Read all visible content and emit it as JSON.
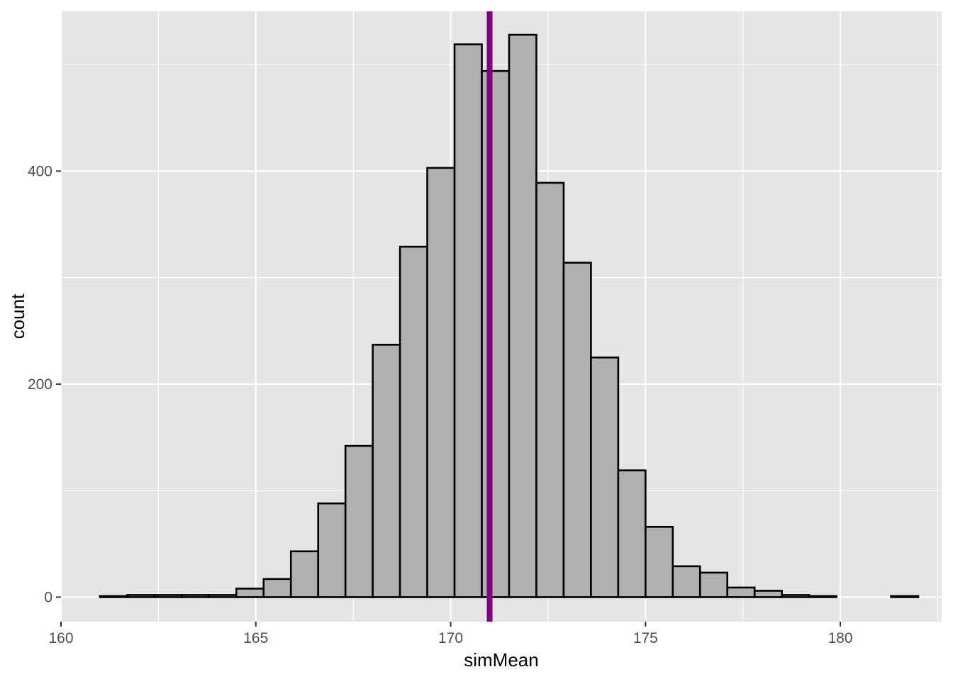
{
  "chart_data": {
    "type": "bar",
    "subtype": "histogram",
    "xlabel": "simMean",
    "ylabel": "count",
    "xlim": [
      160,
      182.6
    ],
    "ylim": [
      -23,
      550
    ],
    "x_ticks": [
      160,
      165,
      170,
      175,
      180
    ],
    "y_ticks": [
      0,
      200,
      400
    ],
    "x_tick_labels": [
      "160",
      "165",
      "170",
      "175",
      "180"
    ],
    "y_tick_labels": [
      "0",
      "200",
      "400"
    ],
    "grid": true,
    "bin_width": 0.7,
    "bins": [
      {
        "x0": 161.0,
        "x1": 161.7,
        "count": 1
      },
      {
        "x0": 161.7,
        "x1": 162.4,
        "count": 2
      },
      {
        "x0": 162.4,
        "x1": 163.1,
        "count": 2
      },
      {
        "x0": 163.1,
        "x1": 163.8,
        "count": 2
      },
      {
        "x0": 163.8,
        "x1": 164.5,
        "count": 2
      },
      {
        "x0": 164.5,
        "x1": 165.2,
        "count": 8
      },
      {
        "x0": 165.2,
        "x1": 165.9,
        "count": 17
      },
      {
        "x0": 165.9,
        "x1": 166.6,
        "count": 43
      },
      {
        "x0": 166.6,
        "x1": 167.3,
        "count": 88
      },
      {
        "x0": 167.3,
        "x1": 168.0,
        "count": 142
      },
      {
        "x0": 168.0,
        "x1": 168.7,
        "count": 237
      },
      {
        "x0": 168.7,
        "x1": 169.4,
        "count": 329
      },
      {
        "x0": 169.4,
        "x1": 170.1,
        "count": 403
      },
      {
        "x0": 170.1,
        "x1": 170.8,
        "count": 519
      },
      {
        "x0": 170.8,
        "x1": 171.5,
        "count": 494
      },
      {
        "x0": 171.5,
        "x1": 172.2,
        "count": 528
      },
      {
        "x0": 172.2,
        "x1": 172.9,
        "count": 389
      },
      {
        "x0": 172.9,
        "x1": 173.6,
        "count": 314
      },
      {
        "x0": 173.6,
        "x1": 174.3,
        "count": 225
      },
      {
        "x0": 174.3,
        "x1": 175.0,
        "count": 119
      },
      {
        "x0": 175.0,
        "x1": 175.7,
        "count": 66
      },
      {
        "x0": 175.7,
        "x1": 176.4,
        "count": 29
      },
      {
        "x0": 176.4,
        "x1": 177.1,
        "count": 23
      },
      {
        "x0": 177.1,
        "x1": 177.8,
        "count": 9
      },
      {
        "x0": 177.8,
        "x1": 178.5,
        "count": 6
      },
      {
        "x0": 178.5,
        "x1": 179.2,
        "count": 2
      },
      {
        "x0": 179.2,
        "x1": 179.9,
        "count": 1
      },
      {
        "x0": 179.9,
        "x1": 180.6,
        "count": 0
      },
      {
        "x0": 180.6,
        "x1": 181.3,
        "count": 0
      },
      {
        "x0": 181.3,
        "x1": 182.0,
        "count": 1
      }
    ],
    "vline": {
      "x": 171.0,
      "color": "#800080"
    },
    "colors": {
      "panel_background": "#e5e5e5",
      "grid": "#ffffff",
      "bar_fill": "#b0b0b0",
      "bar_outline": "#000000",
      "tick_label": "#4d4d4d",
      "tick_mark": "#333333"
    }
  }
}
